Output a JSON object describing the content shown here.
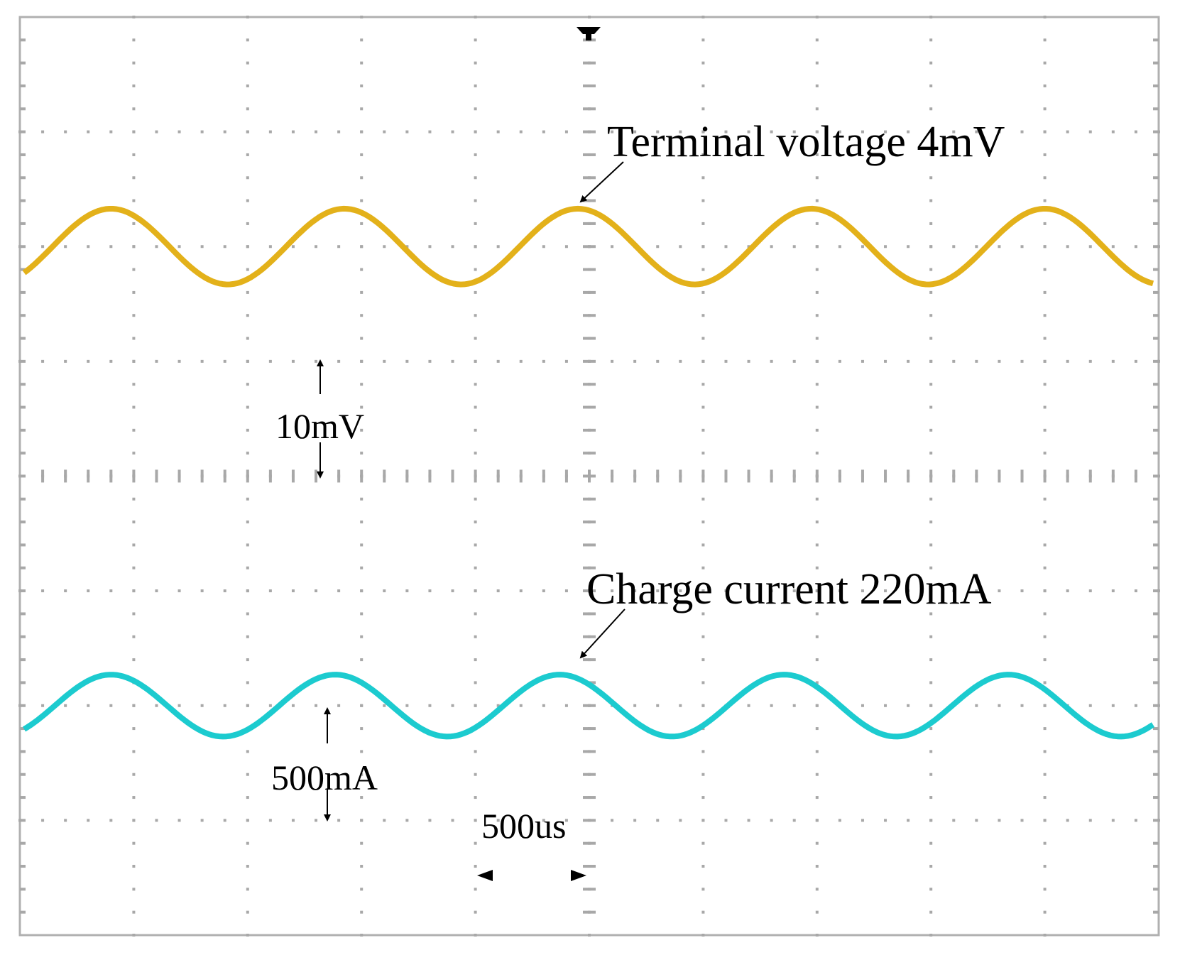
{
  "chart_data": {
    "type": "line",
    "title": "",
    "grid": true,
    "divisions": {
      "x": 10,
      "y": 8
    },
    "x_unit": "us",
    "x_range_divisions": [
      0,
      10
    ],
    "series": [
      {
        "name": "Terminal voltage 4mV",
        "color": "#E3B11A",
        "scale_label": "10mV",
        "center_div": 2.0,
        "amplitude_div": 0.33,
        "period_div": 2.05,
        "phase_div": 0.8
      },
      {
        "name": "Charge current 220mA",
        "color": "#1CCBCF",
        "scale_label": "500mA",
        "center_div": 6.0,
        "amplitude_div": 0.27,
        "period_div": 1.97,
        "phase_div": 0.8
      }
    ],
    "annotations": {
      "time_scale": "500us"
    },
    "trigger_marker_color": "#000000"
  }
}
